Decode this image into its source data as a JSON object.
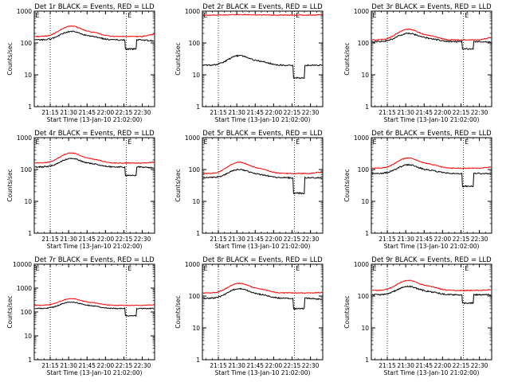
{
  "chart_data": {
    "type": "line",
    "x_ticks": [
      "21:15",
      "21:30",
      "21:45",
      "22:00",
      "22:15",
      "22:30"
    ],
    "x_tick_times_min": [
      15,
      30,
      45,
      60,
      75,
      90
    ],
    "x_range_min": [
      2,
      100
    ],
    "xlabel": "Start Time (13-Jan-10 21:02:00)",
    "ylabel": "Counts/sec",
    "y_scale": "log",
    "dotted_vlines_min": [
      15,
      77
    ],
    "marker_letter": "E",
    "marker_positions_min": [
      3,
      78
    ],
    "colors": {
      "events": "#000000",
      "lld": "#ff0000"
    },
    "panels": [
      {
        "title": "Det 1r BLACK = Events, RED = LLD",
        "ylim": [
          1,
          1000
        ],
        "y_ticks": [
          "1",
          "10",
          "100",
          "1000"
        ],
        "events": {
          "base": 125,
          "peak": 230,
          "dip_start": 76,
          "dip_end": 85,
          "dip_value": 65,
          "end": 115
        },
        "lld": {
          "base": 160,
          "peak": 340,
          "end": 190
        }
      },
      {
        "title": "Det 2r BLACK = Events, RED = LLD",
        "ylim": [
          1,
          1000
        ],
        "y_ticks": [
          "1",
          "10",
          "100",
          "1000"
        ],
        "events": {
          "base": 20,
          "peak": 40,
          "dip_start": 76,
          "dip_end": 85,
          "dip_value": 8,
          "end": 20
        },
        "lld": {
          "base": 750,
          "peak": 780,
          "end": 760
        }
      },
      {
        "title": "Det 3r BLACK = Events, RED = LLD",
        "ylim": [
          1,
          1000
        ],
        "y_ticks": [
          "1",
          "10",
          "100",
          "1000"
        ],
        "events": {
          "base": 110,
          "peak": 200,
          "dip_start": 76,
          "dip_end": 85,
          "dip_value": 65,
          "end": 105
        },
        "lld": {
          "base": 125,
          "peak": 270,
          "end": 150
        }
      },
      {
        "title": "Det 4r BLACK = Events, RED = LLD",
        "ylim": [
          1,
          1000
        ],
        "y_ticks": [
          "1",
          "10",
          "100",
          "1000"
        ],
        "events": {
          "base": 120,
          "peak": 220,
          "dip_start": 76,
          "dip_end": 85,
          "dip_value": 65,
          "end": 110
        },
        "lld": {
          "base": 160,
          "peak": 330,
          "end": 170
        }
      },
      {
        "title": "Det 5r BLACK = Events, RED = LLD",
        "ylim": [
          1,
          1000
        ],
        "y_ticks": [
          "1",
          "10",
          "100",
          "1000"
        ],
        "events": {
          "base": 55,
          "peak": 100,
          "dip_start": 76,
          "dip_end": 85,
          "dip_value": 18,
          "end": 55
        },
        "lld": {
          "base": 75,
          "peak": 170,
          "end": 85
        }
      },
      {
        "title": "Det 6r BLACK = Events, RED = LLD",
        "ylim": [
          1,
          1000
        ],
        "y_ticks": [
          "1",
          "10",
          "100",
          "1000"
        ],
        "events": {
          "base": 75,
          "peak": 140,
          "dip_start": 76,
          "dip_end": 85,
          "dip_value": 30,
          "end": 75
        },
        "lld": {
          "base": 110,
          "peak": 230,
          "end": 120
        }
      },
      {
        "title": "Det 7r BLACK = Events, RED = LLD",
        "ylim": [
          1,
          10000
        ],
        "y_ticks": [
          "1",
          "10",
          "100",
          "1000",
          "10000"
        ],
        "events": {
          "base": 140,
          "peak": 260,
          "dip_start": 76,
          "dip_end": 85,
          "dip_value": 70,
          "end": 140
        },
        "lld": {
          "base": 190,
          "peak": 360,
          "end": 200
        }
      },
      {
        "title": "Det 8r BLACK = Events, RED = LLD",
        "ylim": [
          1,
          1000
        ],
        "y_ticks": [
          "1",
          "10",
          "100",
          "1000"
        ],
        "events": {
          "base": 85,
          "peak": 170,
          "dip_start": 76,
          "dip_end": 85,
          "dip_value": 40,
          "end": 80
        },
        "lld": {
          "base": 125,
          "peak": 250,
          "end": 130
        }
      },
      {
        "title": "Det 9r BLACK = Events, RED = LLD",
        "ylim": [
          1,
          1000
        ],
        "y_ticks": [
          "1",
          "10",
          "100",
          "1000"
        ],
        "events": {
          "base": 110,
          "peak": 200,
          "dip_start": 76,
          "dip_end": 85,
          "dip_value": 60,
          "end": 110
        },
        "lld": {
          "base": 150,
          "peak": 310,
          "end": 160
        }
      }
    ]
  }
}
